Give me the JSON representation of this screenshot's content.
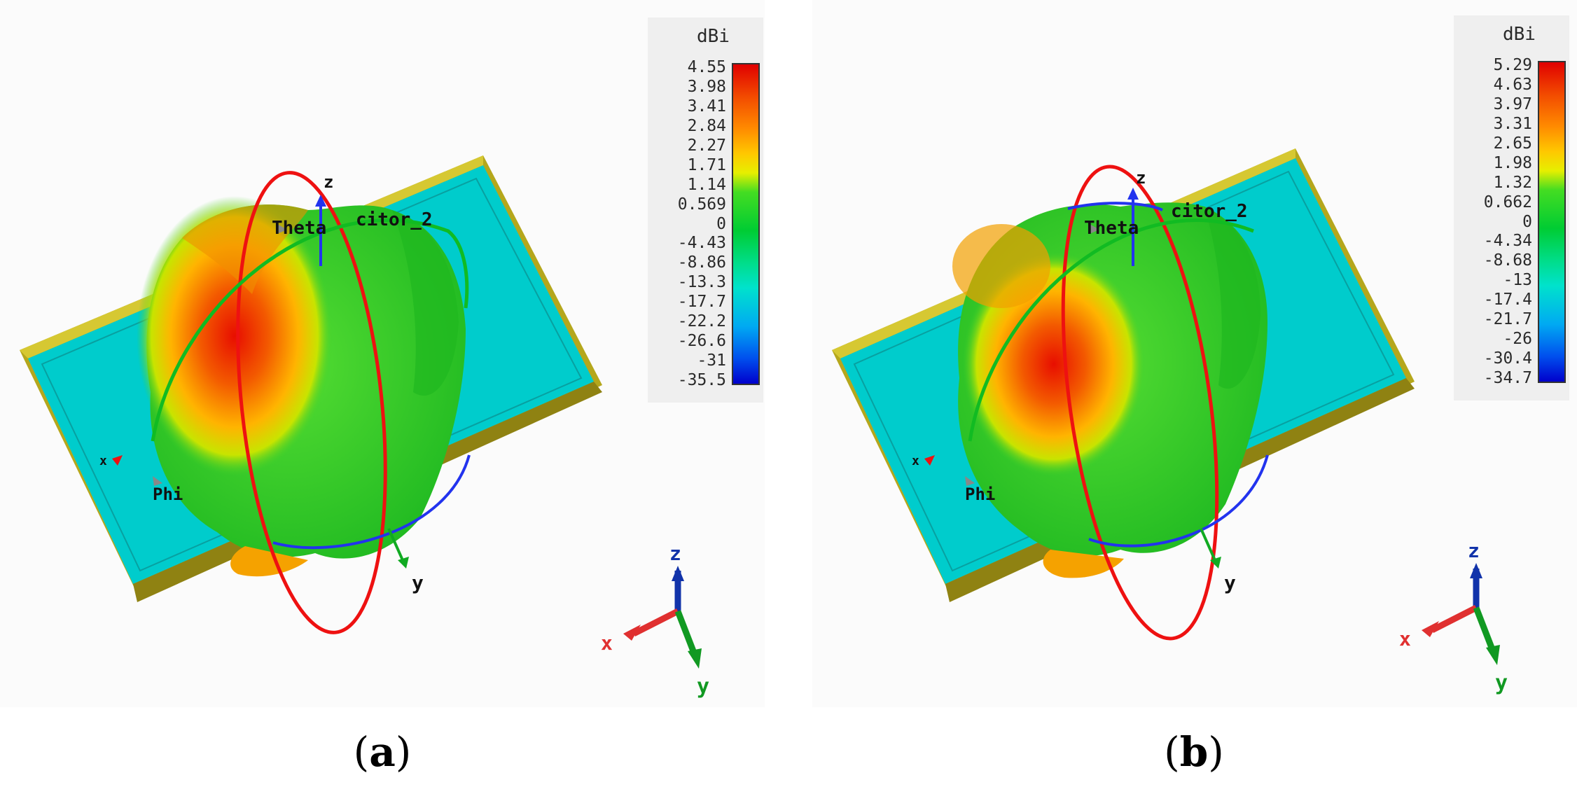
{
  "panels": [
    {
      "label": "a",
      "legend": {
        "unit": "dBi",
        "ticks": [
          "4.55",
          "3.98",
          "3.41",
          "2.84",
          "2.27",
          "1.71",
          "1.14",
          "0.569",
          "0",
          "-4.43",
          "-8.86",
          "-13.3",
          "-17.7",
          "-22.2",
          "-26.6",
          "-31",
          "-35.5"
        ]
      },
      "scene_labels": {
        "theta": "Theta",
        "phi": "Phi",
        "z": "z",
        "y": "y",
        "x": "x",
        "component": "citor_2"
      },
      "triad": {
        "z": "z",
        "x": "x",
        "y": "y"
      }
    },
    {
      "label": "b",
      "legend": {
        "unit": "dBi",
        "ticks": [
          "5.29",
          "4.63",
          "3.97",
          "3.31",
          "2.65",
          "1.98",
          "1.32",
          "0.662",
          "0",
          "-4.34",
          "-8.68",
          "-13",
          "-17.4",
          "-21.7",
          "-26",
          "-30.4",
          "-34.7"
        ]
      },
      "scene_labels": {
        "theta": "Theta",
        "phi": "Phi",
        "z": "z",
        "y": "y",
        "x": "x",
        "component": "citor_2"
      },
      "triad": {
        "z": "z",
        "x": "x",
        "y": "y"
      }
    }
  ],
  "colors": {
    "board_top": "#00cccc",
    "board_edge": "#a89a1a",
    "pattern_max": "#e81200",
    "pattern_mid": "#22cc22",
    "theta_arc": "#ee1111",
    "phi_arc": "#2233ee",
    "axis_x": "#ee1111",
    "axis_y": "#11aa22",
    "axis_z": "#1133aa"
  }
}
